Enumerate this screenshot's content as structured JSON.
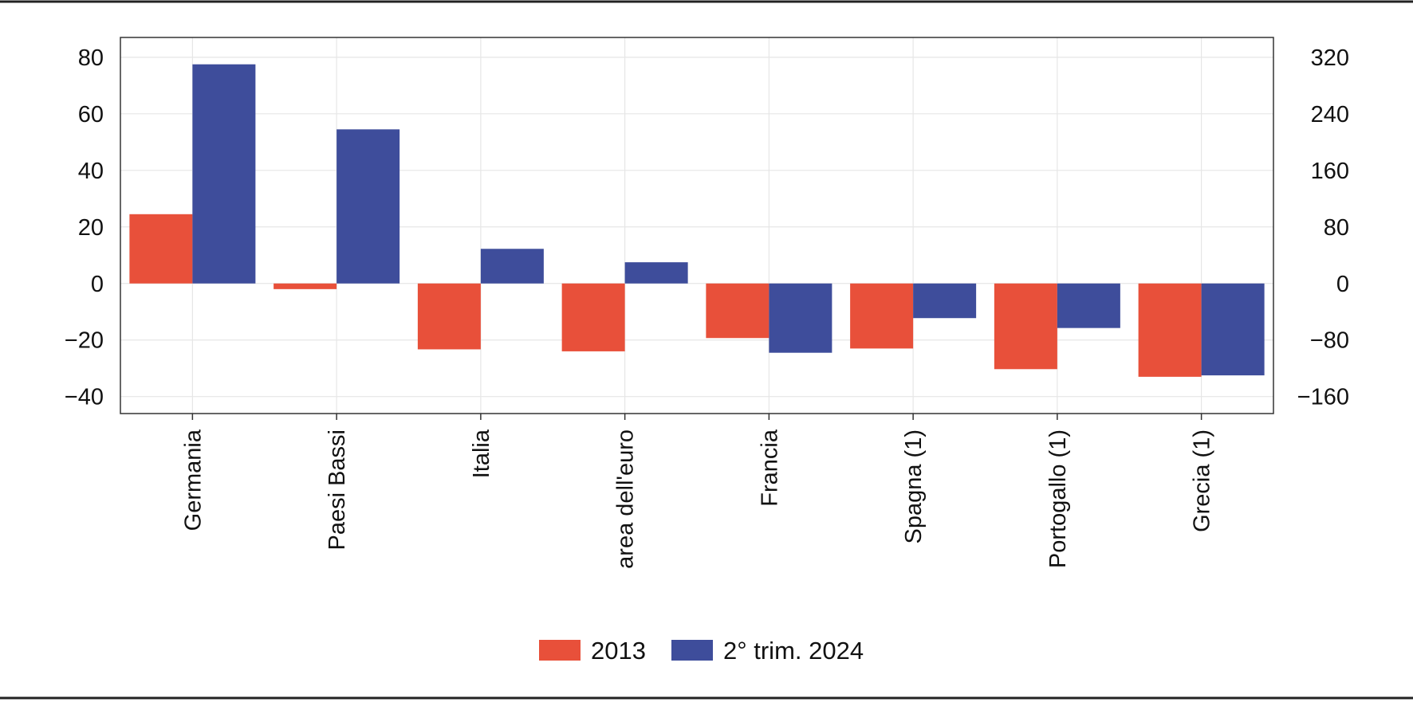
{
  "chart_data": {
    "type": "bar",
    "categories": [
      "Germania",
      "Paesi Bassi",
      "Italia",
      "area dell'euro",
      "Francia",
      "Spagna (1)",
      "Portogallo (1)",
      "Grecia (1)"
    ],
    "series": [
      {
        "name": "2013",
        "color": "#e8503a",
        "axis": "left",
        "values": [
          24.5,
          -2,
          -23.3,
          -24,
          -19.3,
          -23,
          -30.3,
          -33
        ]
      },
      {
        "name": "2° trim. 2024",
        "color": "#3e4d9b",
        "axis": "right",
        "values": [
          310,
          218,
          49,
          30,
          -98,
          -49,
          -63,
          -130
        ]
      }
    ],
    "y_left": {
      "range": [
        -46,
        87
      ],
      "ticks": [
        80,
        60,
        40,
        20,
        0,
        -20,
        -40
      ],
      "tick_labels": [
        "80",
        "60",
        "40",
        "20",
        "0",
        "−20",
        "−40"
      ]
    },
    "y_right": {
      "range": [
        -184,
        348
      ],
      "ticks": [
        320,
        240,
        160,
        80,
        0,
        -80,
        -160
      ],
      "tick_labels": [
        "320",
        "240",
        "160",
        "80",
        "0",
        "−80",
        "−160"
      ]
    },
    "grid": true,
    "legend_position": "bottom-center",
    "title": "",
    "xlabel": "",
    "ylabel": ""
  }
}
